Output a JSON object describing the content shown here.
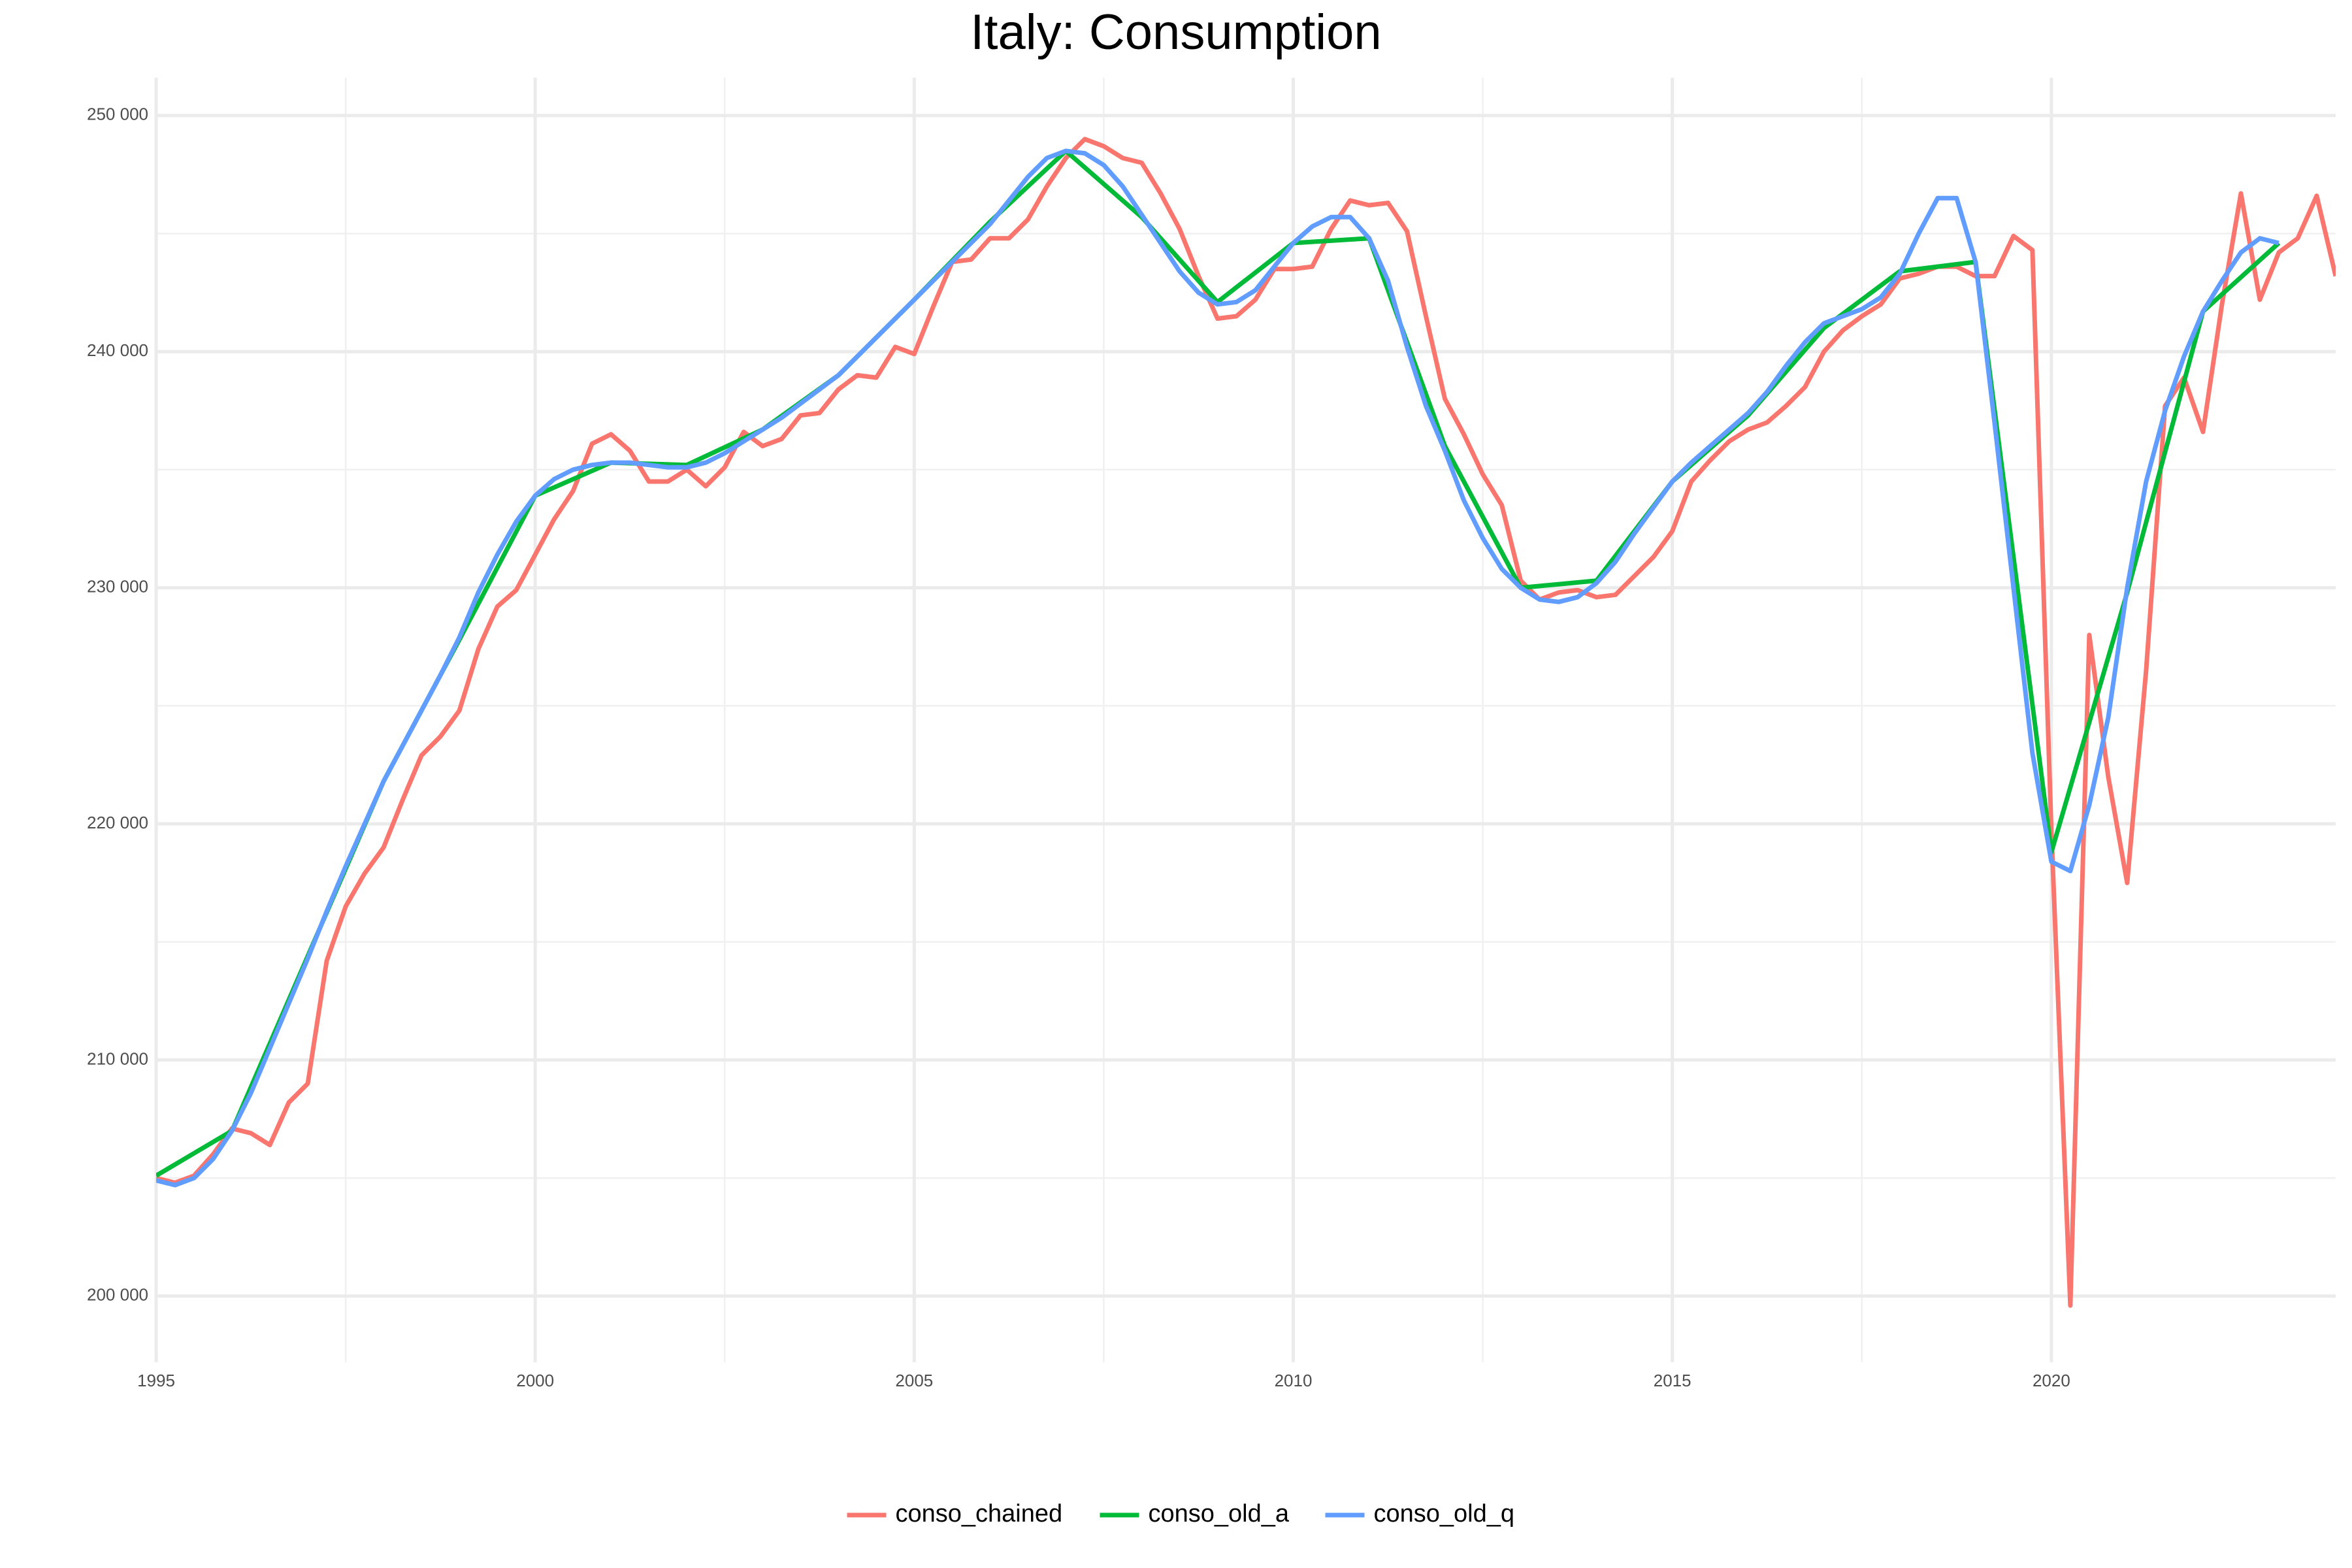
{
  "chart_data": {
    "type": "line",
    "title": "Italy: Consumption",
    "legend": "bottom",
    "grid": true,
    "xlim": [
      1995,
      2023.75
    ],
    "ylim": [
      197200,
      251600
    ],
    "xticks": [
      1995,
      2000,
      2005,
      2010,
      2015,
      2020
    ],
    "yticks": [
      {
        "value": 200000,
        "label": "200 000"
      },
      {
        "value": 210000,
        "label": "210 000"
      },
      {
        "value": 220000,
        "label": "220 000"
      },
      {
        "value": 230000,
        "label": "230 000"
      },
      {
        "value": 240000,
        "label": "240 000"
      },
      {
        "value": 250000,
        "label": "250 000"
      }
    ],
    "series": [
      {
        "name": "conso_chained",
        "color": "#F8766D",
        "x": [
          1995,
          1995.25,
          1995.5,
          1995.75,
          1996,
          1996.25,
          1996.5,
          1996.75,
          1997,
          1997.25,
          1997.5,
          1997.75,
          1998,
          1998.25,
          1998.5,
          1998.75,
          1999,
          1999.25,
          1999.5,
          1999.75,
          2000,
          2000.25,
          2000.5,
          2000.75,
          2001,
          2001.25,
          2001.5,
          2001.75,
          2002,
          2002.25,
          2002.5,
          2002.75,
          2003,
          2003.25,
          2003.5,
          2003.75,
          2004,
          2004.25,
          2004.5,
          2004.75,
          2005,
          2005.25,
          2005.5,
          2005.75,
          2006,
          2006.25,
          2006.5,
          2006.75,
          2007,
          2007.25,
          2007.5,
          2007.75,
          2008,
          2008.25,
          2008.5,
          2008.75,
          2009,
          2009.25,
          2009.5,
          2009.75,
          2010,
          2010.25,
          2010.5,
          2010.75,
          2011,
          2011.25,
          2011.5,
          2011.75,
          2012,
          2012.25,
          2012.5,
          2012.75,
          2013,
          2013.25,
          2013.5,
          2013.75,
          2014,
          2014.25,
          2014.5,
          2014.75,
          2015,
          2015.25,
          2015.5,
          2015.75,
          2016,
          2016.25,
          2016.5,
          2016.75,
          2017,
          2017.25,
          2017.5,
          2017.75,
          2018,
          2018.25,
          2018.5,
          2018.75,
          2019,
          2019.25,
          2019.5,
          2019.75,
          2020,
          2020.25,
          2020.5,
          2020.75,
          2021,
          2021.25,
          2021.5,
          2021.75,
          2022,
          2022.25,
          2022.5,
          2022.75,
          2023,
          2023.25,
          2023.5,
          2023.75
        ],
        "values": [
          205000,
          204800,
          205100,
          206000,
          207100,
          206900,
          206400,
          208200,
          209000,
          214200,
          216500,
          217900,
          219000,
          221000,
          222900,
          223700,
          224800,
          227400,
          229200,
          229900,
          231400,
          232900,
          234100,
          236100,
          236500,
          235800,
          234500,
          234500,
          235000,
          234300,
          235100,
          236600,
          236000,
          236300,
          237300,
          237400,
          238400,
          239000,
          238900,
          240200,
          239900,
          241900,
          243800,
          243900,
          244800,
          244800,
          245600,
          247000,
          248200,
          249000,
          248700,
          248200,
          248000,
          246700,
          245200,
          243200,
          241400,
          241500,
          242200,
          243500,
          243500,
          243600,
          245200,
          246400,
          246200,
          246300,
          245100,
          241500,
          238000,
          236500,
          234800,
          233500,
          230300,
          229500,
          229800,
          229900,
          229600,
          229700,
          230500,
          231300,
          232400,
          234500,
          235400,
          236200,
          236700,
          237000,
          237700,
          238500,
          240000,
          240900,
          241500,
          242000,
          243100,
          243300,
          243600,
          243600,
          243200,
          243200,
          244900,
          244300,
          219700,
          199600,
          228000,
          222000,
          217500,
          226500,
          237700,
          238900,
          236600,
          242000,
          246700,
          242200,
          244200,
          244800,
          246600,
          243200
        ]
      },
      {
        "name": "conso_old_a",
        "color": "#00BA38",
        "x": [
          1995,
          1996,
          1997,
          1998,
          1999,
          2000,
          2001,
          2002,
          2003,
          2004,
          2005,
          2006,
          2007,
          2008,
          2009,
          2010,
          2011,
          2012,
          2013,
          2014,
          2015,
          2016,
          2017,
          2018,
          2019,
          2020,
          2021,
          2022,
          2023
        ],
        "values": [
          205100,
          207000,
          214400,
          221800,
          227800,
          233900,
          235300,
          235200,
          236700,
          239000,
          242200,
          245500,
          248500,
          245700,
          242100,
          244600,
          244800,
          236000,
          230000,
          230300,
          234500,
          237300,
          241000,
          243400,
          243800,
          218800,
          229800,
          241700,
          244600
        ]
      },
      {
        "name": "conso_old_q",
        "color": "#619CFF",
        "x": [
          1995,
          1995.25,
          1995.5,
          1995.75,
          1996,
          1996.25,
          1996.5,
          1996.75,
          1997,
          1997.25,
          1997.5,
          1997.75,
          1998,
          1998.25,
          1998.5,
          1998.75,
          1999,
          1999.25,
          1999.5,
          1999.75,
          2000,
          2000.25,
          2000.5,
          2000.75,
          2001,
          2001.25,
          2001.5,
          2001.75,
          2002,
          2002.25,
          2002.5,
          2002.75,
          2003,
          2003.25,
          2003.5,
          2003.75,
          2004,
          2004.25,
          2004.5,
          2004.75,
          2005,
          2005.25,
          2005.5,
          2005.75,
          2006,
          2006.25,
          2006.5,
          2006.75,
          2007,
          2007.25,
          2007.5,
          2007.75,
          2008,
          2008.25,
          2008.5,
          2008.75,
          2009,
          2009.25,
          2009.5,
          2009.75,
          2010,
          2010.25,
          2010.5,
          2010.75,
          2011,
          2011.25,
          2011.5,
          2011.75,
          2012,
          2012.25,
          2012.5,
          2012.75,
          2013,
          2013.25,
          2013.5,
          2013.75,
          2014,
          2014.25,
          2014.5,
          2014.75,
          2015,
          2015.25,
          2015.5,
          2015.75,
          2016,
          2016.25,
          2016.5,
          2016.75,
          2017,
          2017.25,
          2017.5,
          2017.75,
          2018,
          2018.25,
          2018.5,
          2018.75,
          2019,
          2019.25,
          2019.5,
          2019.75,
          2020,
          2020.25,
          2020.5,
          2020.75,
          2021,
          2021.25,
          2021.5,
          2021.75,
          2022,
          2022.25,
          2022.5,
          2022.75,
          2023
        ],
        "values": [
          204900,
          204700,
          205000,
          205800,
          207000,
          208600,
          210500,
          212400,
          214300,
          216300,
          218200,
          220000,
          221800,
          223300,
          224800,
          226300,
          227900,
          229800,
          231400,
          232800,
          233900,
          234600,
          235000,
          235200,
          235300,
          235300,
          235200,
          235100,
          235100,
          235300,
          235700,
          236200,
          236700,
          237200,
          237800,
          238400,
          239000,
          239800,
          240600,
          241400,
          242200,
          243000,
          243800,
          244600,
          245400,
          246400,
          247400,
          248200,
          248500,
          248400,
          247900,
          247000,
          245800,
          244600,
          243400,
          242500,
          242000,
          242100,
          242600,
          243600,
          244600,
          245300,
          245700,
          245700,
          244800,
          243000,
          240200,
          237700,
          235800,
          233700,
          232100,
          230800,
          230000,
          229500,
          229400,
          229600,
          230200,
          231100,
          232300,
          233400,
          234500,
          235300,
          236000,
          236700,
          237400,
          238300,
          239400,
          240400,
          241200,
          241500,
          241800,
          242300,
          243300,
          245000,
          246500,
          246500,
          243800,
          237000,
          230000,
          223000,
          218400,
          218000,
          220800,
          224500,
          230000,
          234500,
          237500,
          239800,
          241700,
          243000,
          244200,
          244800,
          244600
        ]
      }
    ]
  }
}
